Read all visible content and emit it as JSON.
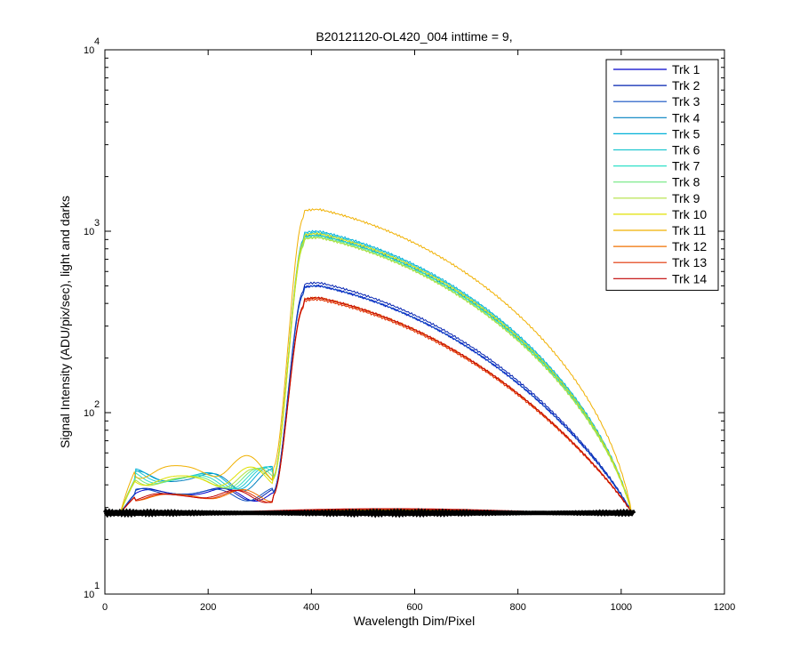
{
  "chart_data": {
    "type": "line",
    "title": "B20121120-OL420_004 inttime = 9,",
    "xlabel": "Wavelength Dim/Pixel",
    "ylabel": "Signal Intensity (ADU/pix/sec), light and darks",
    "xlim": [
      0,
      1200
    ],
    "ylim": [
      10,
      10000
    ],
    "yscale": "log",
    "xticks": [
      0,
      200,
      400,
      600,
      800,
      1000,
      1200
    ],
    "yticks": [
      10,
      100,
      1000,
      10000
    ],
    "ytick_labels": [
      {
        "base": "10",
        "exp": "1"
      },
      {
        "base": "10",
        "exp": "2"
      },
      {
        "base": "10",
        "exp": "3"
      },
      {
        "base": "10",
        "exp": "4"
      }
    ],
    "legend_position": "top-right",
    "series": [
      {
        "name": "Trk 1",
        "color": "#0000cc",
        "level": 0.5
      },
      {
        "name": "Trk 2",
        "color": "#0020b0",
        "level": 0.52
      },
      {
        "name": "Trk 3",
        "color": "#1050c0",
        "level": 0.5
      },
      {
        "name": "Trk 4",
        "color": "#0080c0",
        "level": 0.95
      },
      {
        "name": "Trk 5",
        "color": "#00b0d8",
        "level": 1.0
      },
      {
        "name": "Trk 6",
        "color": "#20c8d0",
        "level": 0.98
      },
      {
        "name": "Trk 7",
        "color": "#30e0c8",
        "level": 0.95
      },
      {
        "name": "Trk 8",
        "color": "#70e880",
        "level": 0.93
      },
      {
        "name": "Trk 9",
        "color": "#b0e040",
        "level": 0.92
      },
      {
        "name": "Trk 10",
        "color": "#e0e000",
        "level": 0.97
      },
      {
        "name": "Trk 11",
        "color": "#f0b000",
        "level": 1.32
      },
      {
        "name": "Trk 12",
        "color": "#f07000",
        "level": 0.43
      },
      {
        "name": "Trk 13",
        "color": "#e03000",
        "level": 0.42
      },
      {
        "name": "Trk 14",
        "color": "#c00000",
        "level": 0.43
      }
    ],
    "dark_baseline": 28
  }
}
